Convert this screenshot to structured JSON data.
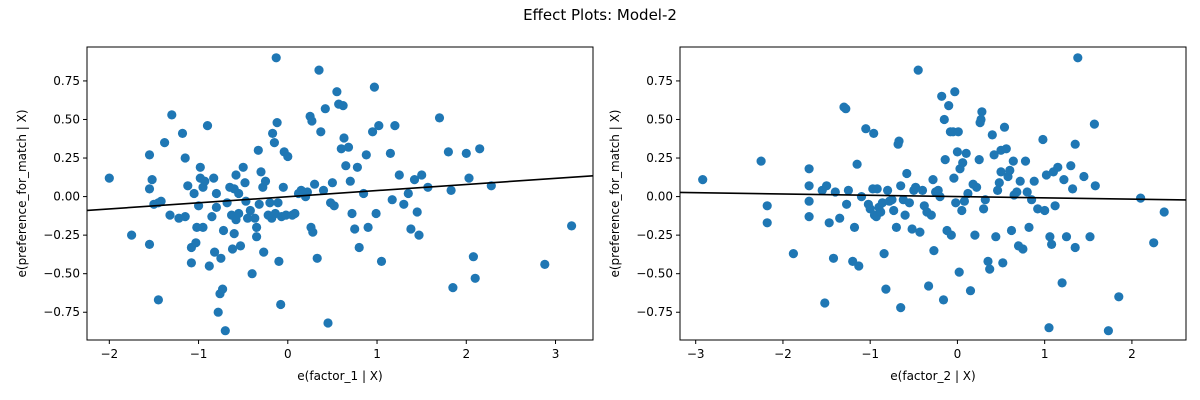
{
  "figure": {
    "title": "Effect Plots: Model-2",
    "marker_color": "#1f77b4",
    "line_color": "#000000"
  },
  "chart_data": [
    {
      "type": "scatter",
      "title": "",
      "xlabel": "e(factor_1 | X)",
      "ylabel": "e(preference_for_match | X)",
      "xlim": [
        -2.25,
        3.42
      ],
      "ylim": [
        -0.93,
        0.97
      ],
      "xticks": [
        -2,
        -1,
        0,
        1,
        2,
        3
      ],
      "yticks": [
        -0.75,
        -0.5,
        -0.25,
        0.0,
        0.25,
        0.5,
        0.75
      ],
      "ytick_labels": [
        "−0.75",
        "−0.50",
        "−0.25",
        "0.00",
        "0.25",
        "0.50",
        "0.75"
      ],
      "xtick_labels": [
        "−2",
        "−1",
        "0",
        "1",
        "2",
        "3"
      ],
      "grid": false,
      "fit_line": {
        "x": [
          -2.25,
          3.42
        ],
        "y": [
          -0.09,
          0.135
        ]
      },
      "points": [
        [
          -2.0,
          0.12
        ],
        [
          -1.75,
          -0.25
        ],
        [
          -1.55,
          0.27
        ],
        [
          -1.55,
          0.05
        ],
        [
          -1.52,
          0.11
        ],
        [
          -1.55,
          -0.31
        ],
        [
          -1.5,
          -0.05
        ],
        [
          -1.45,
          -0.04
        ],
        [
          -1.45,
          -0.67
        ],
        [
          -1.42,
          -0.03
        ],
        [
          -1.38,
          0.35
        ],
        [
          -1.32,
          -0.12
        ],
        [
          -1.3,
          0.53
        ],
        [
          -1.22,
          -0.14
        ],
        [
          -1.18,
          0.41
        ],
        [
          -1.15,
          0.25
        ],
        [
          -1.15,
          -0.13
        ],
        [
          -1.12,
          0.07
        ],
        [
          -1.08,
          -0.43
        ],
        [
          -1.08,
          -0.33
        ],
        [
          -1.05,
          0.02
        ],
        [
          -1.03,
          -0.3
        ],
        [
          -1.02,
          -0.2
        ],
        [
          -1.0,
          -0.06
        ],
        [
          -0.98,
          0.19
        ],
        [
          -0.98,
          0.12
        ],
        [
          -0.95,
          0.06
        ],
        [
          -0.95,
          -0.2
        ],
        [
          -0.93,
          0.1
        ],
        [
          -0.9,
          0.46
        ],
        [
          -0.88,
          -0.45
        ],
        [
          -0.85,
          -0.13
        ],
        [
          -0.83,
          0.12
        ],
        [
          -0.82,
          -0.36
        ],
        [
          -0.8,
          0.02
        ],
        [
          -0.8,
          -0.07
        ],
        [
          -0.78,
          -0.75
        ],
        [
          -0.76,
          -0.63
        ],
        [
          -0.75,
          -0.4
        ],
        [
          -0.73,
          -0.6
        ],
        [
          -0.72,
          -0.22
        ],
        [
          -0.7,
          -0.87
        ],
        [
          -0.68,
          -0.04
        ],
        [
          -0.65,
          0.06
        ],
        [
          -0.63,
          -0.12
        ],
        [
          -0.62,
          -0.34
        ],
        [
          -0.6,
          0.05
        ],
        [
          -0.6,
          -0.24
        ],
        [
          -0.58,
          0.14
        ],
        [
          -0.58,
          -0.15
        ],
        [
          -0.55,
          0.02
        ],
        [
          -0.55,
          -0.11
        ],
        [
          -0.53,
          -0.32
        ],
        [
          -0.5,
          0.19
        ],
        [
          -0.48,
          0.09
        ],
        [
          -0.47,
          -0.03
        ],
        [
          -0.45,
          -0.14
        ],
        [
          -0.42,
          -0.09
        ],
        [
          -0.4,
          -0.5
        ],
        [
          -0.37,
          -0.14
        ],
        [
          -0.35,
          -0.2
        ],
        [
          -0.35,
          -0.26
        ],
        [
          -0.33,
          0.3
        ],
        [
          -0.32,
          -0.05
        ],
        [
          -0.3,
          0.16
        ],
        [
          -0.28,
          0.06
        ],
        [
          -0.27,
          -0.36
        ],
        [
          -0.25,
          0.1
        ],
        [
          -0.22,
          -0.12
        ],
        [
          -0.2,
          -0.04
        ],
        [
          -0.18,
          -0.14
        ],
        [
          -0.17,
          0.41
        ],
        [
          -0.15,
          0.35
        ],
        [
          -0.14,
          -0.11
        ],
        [
          -0.13,
          0.9
        ],
        [
          -0.12,
          0.48
        ],
        [
          -0.11,
          -0.04
        ],
        [
          -0.1,
          -0.42
        ],
        [
          -0.08,
          -0.7
        ],
        [
          -0.07,
          -0.13
        ],
        [
          -0.05,
          0.06
        ],
        [
          -0.04,
          0.29
        ],
        [
          -0.02,
          -0.12
        ],
        [
          0.0,
          0.26
        ],
        [
          0.05,
          -0.12
        ],
        [
          0.08,
          -0.11
        ],
        [
          0.12,
          0.02
        ],
        [
          0.15,
          0.04
        ],
        [
          0.18,
          0.02
        ],
        [
          0.2,
          0.0
        ],
        [
          0.22,
          0.03
        ],
        [
          0.25,
          0.52
        ],
        [
          0.26,
          -0.2
        ],
        [
          0.27,
          0.49
        ],
        [
          0.28,
          -0.23
        ],
        [
          0.3,
          0.08
        ],
        [
          0.33,
          -0.4
        ],
        [
          0.35,
          0.82
        ],
        [
          0.37,
          0.42
        ],
        [
          0.4,
          0.04
        ],
        [
          0.42,
          0.57
        ],
        [
          0.45,
          -0.82
        ],
        [
          0.48,
          -0.04
        ],
        [
          0.5,
          0.09
        ],
        [
          0.52,
          -0.06
        ],
        [
          0.55,
          0.68
        ],
        [
          0.57,
          0.6
        ],
        [
          0.6,
          0.31
        ],
        [
          0.62,
          0.59
        ],
        [
          0.63,
          0.38
        ],
        [
          0.65,
          0.2
        ],
        [
          0.68,
          0.32
        ],
        [
          0.7,
          0.1
        ],
        [
          0.72,
          -0.11
        ],
        [
          0.75,
          -0.21
        ],
        [
          0.78,
          0.19
        ],
        [
          0.8,
          -0.33
        ],
        [
          0.85,
          0.02
        ],
        [
          0.88,
          0.27
        ],
        [
          0.9,
          -0.2
        ],
        [
          0.95,
          0.42
        ],
        [
          0.97,
          0.71
        ],
        [
          0.99,
          -0.11
        ],
        [
          1.02,
          0.46
        ],
        [
          1.05,
          -0.42
        ],
        [
          1.15,
          0.28
        ],
        [
          1.17,
          -0.02
        ],
        [
          1.2,
          0.46
        ],
        [
          1.25,
          0.14
        ],
        [
          1.3,
          -0.05
        ],
        [
          1.35,
          0.02
        ],
        [
          1.38,
          -0.21
        ],
        [
          1.42,
          0.11
        ],
        [
          1.45,
          -0.1
        ],
        [
          1.47,
          -0.25
        ],
        [
          1.5,
          0.14
        ],
        [
          1.57,
          0.06
        ],
        [
          1.7,
          0.51
        ],
        [
          1.8,
          0.29
        ],
        [
          1.83,
          0.04
        ],
        [
          1.85,
          -0.59
        ],
        [
          2.0,
          0.28
        ],
        [
          2.03,
          0.12
        ],
        [
          2.08,
          -0.39
        ],
        [
          2.1,
          -0.53
        ],
        [
          2.15,
          0.31
        ],
        [
          2.28,
          0.07
        ],
        [
          2.88,
          -0.44
        ],
        [
          3.18,
          -0.19
        ]
      ]
    },
    {
      "type": "scatter",
      "title": "",
      "xlabel": "e(factor_2 | X)",
      "ylabel": "e(preference_for_match | X)",
      "xlim": [
        -3.18,
        2.62
      ],
      "ylim": [
        -0.93,
        0.97
      ],
      "xticks": [
        -3,
        -2,
        -1,
        0,
        1,
        2
      ],
      "yticks": [
        -0.75,
        -0.5,
        -0.25,
        0.0,
        0.25,
        0.5,
        0.75
      ],
      "ytick_labels": [
        "−0.75",
        "−0.50",
        "−0.25",
        "0.00",
        "0.25",
        "0.50",
        "0.75"
      ],
      "xtick_labels": [
        "−3",
        "−2",
        "−1",
        "0",
        "1",
        "2"
      ],
      "grid": false,
      "fit_line": {
        "x": [
          -3.18,
          2.62
        ],
        "y": [
          0.027,
          -0.022
        ]
      },
      "points": [
        [
          -2.92,
          0.11
        ],
        [
          -2.25,
          0.23
        ],
        [
          -2.18,
          -0.06
        ],
        [
          -2.18,
          -0.17
        ],
        [
          -1.88,
          -0.37
        ],
        [
          -1.7,
          0.18
        ],
        [
          -1.7,
          0.07
        ],
        [
          -1.7,
          -0.03
        ],
        [
          -1.7,
          -0.13
        ],
        [
          -1.55,
          0.04
        ],
        [
          -1.52,
          -0.69
        ],
        [
          -1.5,
          0.07
        ],
        [
          -1.47,
          -0.17
        ],
        [
          -1.42,
          -0.4
        ],
        [
          -1.4,
          0.03
        ],
        [
          -1.35,
          -0.14
        ],
        [
          -1.3,
          0.58
        ],
        [
          -1.28,
          0.57
        ],
        [
          -1.27,
          -0.05
        ],
        [
          -1.25,
          0.04
        ],
        [
          -1.2,
          -0.42
        ],
        [
          -1.18,
          -0.2
        ],
        [
          -1.15,
          0.21
        ],
        [
          -1.13,
          -0.45
        ],
        [
          -1.1,
          0.0
        ],
        [
          -1.05,
          0.44
        ],
        [
          -1.02,
          -0.05
        ],
        [
          -1.0,
          -0.08
        ],
        [
          -0.97,
          0.05
        ],
        [
          -0.96,
          0.41
        ],
        [
          -0.95,
          -0.12
        ],
        [
          -0.93,
          -0.13
        ],
        [
          -0.92,
          0.05
        ],
        [
          -0.9,
          -0.07
        ],
        [
          -0.88,
          -0.1
        ],
        [
          -0.86,
          -0.04
        ],
        [
          -0.84,
          -0.37
        ],
        [
          -0.82,
          -0.6
        ],
        [
          -0.8,
          0.04
        ],
        [
          -0.78,
          -0.03
        ],
        [
          -0.75,
          -0.02
        ],
        [
          -0.73,
          -0.09
        ],
        [
          -0.7,
          -0.2
        ],
        [
          -0.68,
          0.34
        ],
        [
          -0.67,
          0.36
        ],
        [
          -0.65,
          0.07
        ],
        [
          -0.65,
          -0.72
        ],
        [
          -0.62,
          -0.02
        ],
        [
          -0.6,
          -0.12
        ],
        [
          -0.58,
          0.15
        ],
        [
          -0.55,
          -0.04
        ],
        [
          -0.52,
          -0.21
        ],
        [
          -0.5,
          0.04
        ],
        [
          -0.48,
          0.06
        ],
        [
          -0.45,
          0.82
        ],
        [
          -0.43,
          -0.23
        ],
        [
          -0.4,
          0.04
        ],
        [
          -0.38,
          -0.06
        ],
        [
          -0.35,
          -0.1
        ],
        [
          -0.33,
          -0.58
        ],
        [
          -0.3,
          -0.12
        ],
        [
          -0.28,
          0.11
        ],
        [
          -0.27,
          -0.35
        ],
        [
          -0.25,
          0.03
        ],
        [
          -0.22,
          0.04
        ],
        [
          -0.2,
          0.0
        ],
        [
          -0.18,
          0.65
        ],
        [
          -0.16,
          -0.67
        ],
        [
          -0.15,
          0.5
        ],
        [
          -0.14,
          0.24
        ],
        [
          -0.12,
          -0.22
        ],
        [
          -0.1,
          0.59
        ],
        [
          -0.08,
          0.42
        ],
        [
          -0.07,
          -0.25
        ],
        [
          -0.05,
          0.42
        ],
        [
          -0.04,
          0.12
        ],
        [
          -0.03,
          0.68
        ],
        [
          -0.02,
          -0.04
        ],
        [
          0.0,
          0.29
        ],
        [
          0.01,
          0.42
        ],
        [
          0.02,
          -0.49
        ],
        [
          0.03,
          0.18
        ],
        [
          0.05,
          -0.09
        ],
        [
          0.06,
          0.22
        ],
        [
          0.08,
          -0.03
        ],
        [
          0.1,
          0.28
        ],
        [
          0.12,
          0.02
        ],
        [
          0.15,
          -0.61
        ],
        [
          0.18,
          0.08
        ],
        [
          0.2,
          -0.25
        ],
        [
          0.22,
          0.06
        ],
        [
          0.25,
          0.24
        ],
        [
          0.26,
          0.48
        ],
        [
          0.27,
          0.5
        ],
        [
          0.28,
          0.55
        ],
        [
          0.3,
          -0.08
        ],
        [
          0.32,
          -0.02
        ],
        [
          0.35,
          -0.42
        ],
        [
          0.37,
          -0.47
        ],
        [
          0.4,
          0.4
        ],
        [
          0.42,
          0.27
        ],
        [
          0.44,
          -0.26
        ],
        [
          0.46,
          0.04
        ],
        [
          0.48,
          0.09
        ],
        [
          0.5,
          0.3
        ],
        [
          0.5,
          0.16
        ],
        [
          0.52,
          -0.43
        ],
        [
          0.54,
          0.45
        ],
        [
          0.56,
          0.31
        ],
        [
          0.58,
          0.13
        ],
        [
          0.6,
          0.17
        ],
        [
          0.62,
          -0.22
        ],
        [
          0.64,
          0.23
        ],
        [
          0.65,
          0.01
        ],
        [
          0.68,
          0.03
        ],
        [
          0.7,
          -0.32
        ],
        [
          0.72,
          0.1
        ],
        [
          0.75,
          -0.34
        ],
        [
          0.78,
          0.23
        ],
        [
          0.8,
          0.03
        ],
        [
          0.82,
          -0.2
        ],
        [
          0.85,
          -0.02
        ],
        [
          0.88,
          0.1
        ],
        [
          0.92,
          -0.08
        ],
        [
          0.98,
          0.37
        ],
        [
          1.0,
          -0.09
        ],
        [
          1.02,
          0.14
        ],
        [
          1.05,
          -0.85
        ],
        [
          1.06,
          -0.26
        ],
        [
          1.08,
          -0.31
        ],
        [
          1.1,
          0.16
        ],
        [
          1.12,
          -0.06
        ],
        [
          1.15,
          0.19
        ],
        [
          1.2,
          -0.56
        ],
        [
          1.22,
          0.11
        ],
        [
          1.25,
          -0.26
        ],
        [
          1.3,
          0.2
        ],
        [
          1.32,
          0.05
        ],
        [
          1.35,
          0.34
        ],
        [
          1.35,
          -0.33
        ],
        [
          1.38,
          0.9
        ],
        [
          1.45,
          0.13
        ],
        [
          1.52,
          -0.26
        ],
        [
          1.57,
          0.47
        ],
        [
          1.58,
          0.07
        ],
        [
          1.73,
          -0.87
        ],
        [
          1.85,
          -0.65
        ],
        [
          2.1,
          -0.01
        ],
        [
          2.25,
          -0.3
        ],
        [
          2.37,
          -0.1
        ]
      ]
    }
  ]
}
